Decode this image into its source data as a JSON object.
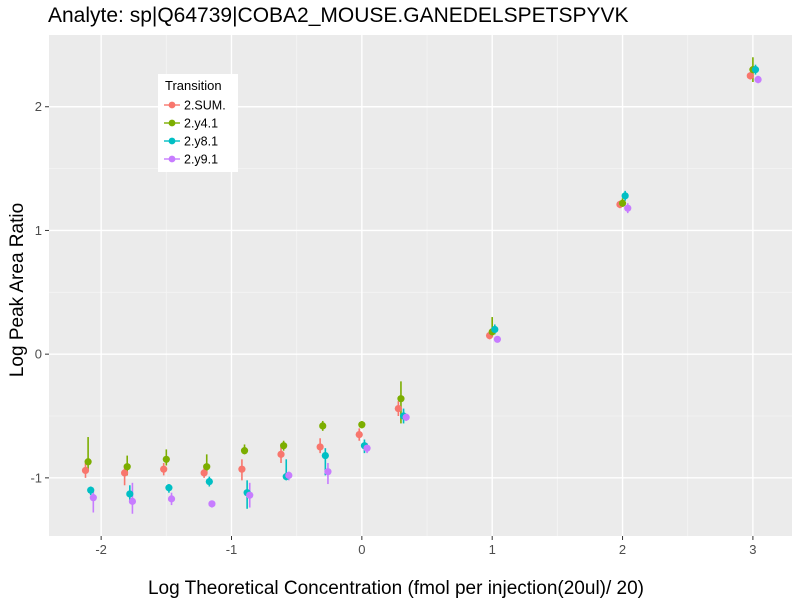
{
  "chart_data": {
    "type": "scatter",
    "title": "Analyte: sp|Q64739|COBA2_MOUSE.GANEDELSPETSPYVK",
    "xlabel": "Log Theoretical Concentration (fmol per injection(20ul)/ 20)",
    "ylabel": "Log Peak Area Ratio",
    "xlim": [
      -2.4,
      3.3
    ],
    "ylim": [
      -1.47,
      2.58
    ],
    "x_ticks": [
      -2,
      -1,
      0,
      1,
      2,
      3
    ],
    "y_ticks": [
      -1,
      0,
      1,
      2
    ],
    "x_tick_labels": [
      "-2",
      "-1",
      "0",
      "1",
      "2",
      "3"
    ],
    "y_tick_labels": [
      "-1",
      "0",
      "1",
      "2"
    ],
    "grid": true,
    "legend": {
      "title": "Transition",
      "position": "top-left"
    },
    "series": [
      {
        "name": "2.SUM.",
        "color": "#F8766D",
        "points": [
          {
            "x": -2.12,
            "y": -0.94,
            "lo": -1.0,
            "hi": -0.88
          },
          {
            "x": -1.82,
            "y": -0.96,
            "lo": -1.06,
            "hi": -0.9
          },
          {
            "x": -1.52,
            "y": -0.93,
            "lo": -0.98,
            "hi": -0.88
          },
          {
            "x": -1.21,
            "y": -0.96,
            "lo": -1.0,
            "hi": -0.9
          },
          {
            "x": -0.92,
            "y": -0.93,
            "lo": -1.02,
            "hi": -0.85
          },
          {
            "x": -0.62,
            "y": -0.81,
            "lo": -0.88,
            "hi": -0.75
          },
          {
            "x": -0.32,
            "y": -0.75,
            "lo": -0.8,
            "hi": -0.68
          },
          {
            "x": -0.02,
            "y": -0.65,
            "lo": -0.7,
            "hi": -0.6
          },
          {
            "x": 0.28,
            "y": -0.44,
            "lo": -0.5,
            "hi": -0.38
          },
          {
            "x": 0.98,
            "y": 0.15,
            "lo": 0.12,
            "hi": 0.18
          },
          {
            "x": 1.98,
            "y": 1.21,
            "lo": 1.18,
            "hi": 1.24
          },
          {
            "x": 2.98,
            "y": 2.25,
            "lo": 2.22,
            "hi": 2.28
          }
        ]
      },
      {
        "name": "2.y4.1",
        "color": "#7CAE00",
        "points": [
          {
            "x": -2.1,
            "y": -0.87,
            "lo": -0.94,
            "hi": -0.67
          },
          {
            "x": -1.8,
            "y": -0.91,
            "lo": -0.98,
            "hi": -0.82
          },
          {
            "x": -1.5,
            "y": -0.85,
            "lo": -0.9,
            "hi": -0.77
          },
          {
            "x": -1.19,
            "y": -0.91,
            "lo": -0.96,
            "hi": -0.81
          },
          {
            "x": -0.9,
            "y": -0.78,
            "lo": -0.81,
            "hi": -0.73
          },
          {
            "x": -0.6,
            "y": -0.74,
            "lo": -0.78,
            "hi": -0.7
          },
          {
            "x": -0.3,
            "y": -0.58,
            "lo": -0.62,
            "hi": -0.54
          },
          {
            "x": 0.0,
            "y": -0.57,
            "lo": -0.6,
            "hi": -0.54
          },
          {
            "x": 0.3,
            "y": -0.36,
            "lo": -0.56,
            "hi": -0.22
          },
          {
            "x": 1.0,
            "y": 0.18,
            "lo": 0.14,
            "hi": 0.3
          },
          {
            "x": 2.0,
            "y": 1.22,
            "lo": 1.19,
            "hi": 1.26
          },
          {
            "x": 3.0,
            "y": 2.3,
            "lo": 2.2,
            "hi": 2.4
          }
        ]
      },
      {
        "name": "2.y8.1",
        "color": "#00BFC4",
        "points": [
          {
            "x": -2.08,
            "y": -1.1,
            "lo": -1.14,
            "hi": -1.07
          },
          {
            "x": -1.78,
            "y": -1.13,
            "lo": -1.2,
            "hi": -1.06
          },
          {
            "x": -1.48,
            "y": -1.08,
            "lo": -1.12,
            "hi": -1.05
          },
          {
            "x": -1.17,
            "y": -1.03,
            "lo": -1.07,
            "hi": -0.99
          },
          {
            "x": -0.88,
            "y": -1.12,
            "lo": -1.25,
            "hi": -1.02
          },
          {
            "x": -0.58,
            "y": -0.99,
            "lo": -1.02,
            "hi": -0.85
          },
          {
            "x": -0.28,
            "y": -0.82,
            "lo": -0.98,
            "hi": -0.76
          },
          {
            "x": 0.02,
            "y": -0.74,
            "lo": -0.8,
            "hi": -0.69
          },
          {
            "x": 0.32,
            "y": -0.5,
            "lo": -0.56,
            "hi": -0.44
          },
          {
            "x": 1.02,
            "y": 0.2,
            "lo": 0.16,
            "hi": 0.24
          },
          {
            "x": 2.02,
            "y": 1.28,
            "lo": 1.24,
            "hi": 1.32
          },
          {
            "x": 3.02,
            "y": 2.3,
            "lo": 2.26,
            "hi": 2.34
          }
        ]
      },
      {
        "name": "2.y9.1",
        "color": "#C77CFF",
        "points": [
          {
            "x": -2.06,
            "y": -1.16,
            "lo": -1.28,
            "hi": -1.1
          },
          {
            "x": -1.76,
            "y": -1.19,
            "lo": -1.29,
            "hi": -1.04
          },
          {
            "x": -1.46,
            "y": -1.17,
            "lo": -1.22,
            "hi": -1.12
          },
          {
            "x": -1.15,
            "y": -1.21,
            "lo": -1.24,
            "hi": -1.19
          },
          {
            "x": -0.86,
            "y": -1.14,
            "lo": -1.24,
            "hi": -1.04
          },
          {
            "x": -0.56,
            "y": -0.98,
            "lo": -1.02,
            "hi": -0.95
          },
          {
            "x": -0.26,
            "y": -0.95,
            "lo": -1.05,
            "hi": -0.88
          },
          {
            "x": 0.04,
            "y": -0.76,
            "lo": -0.8,
            "hi": -0.72
          },
          {
            "x": 0.34,
            "y": -0.51,
            "lo": -0.54,
            "hi": -0.48
          },
          {
            "x": 1.04,
            "y": 0.12,
            "lo": 0.1,
            "hi": 0.14
          },
          {
            "x": 2.04,
            "y": 1.18,
            "lo": 1.14,
            "hi": 1.22
          },
          {
            "x": 3.04,
            "y": 2.22,
            "lo": 2.19,
            "hi": 2.25
          }
        ]
      }
    ]
  }
}
